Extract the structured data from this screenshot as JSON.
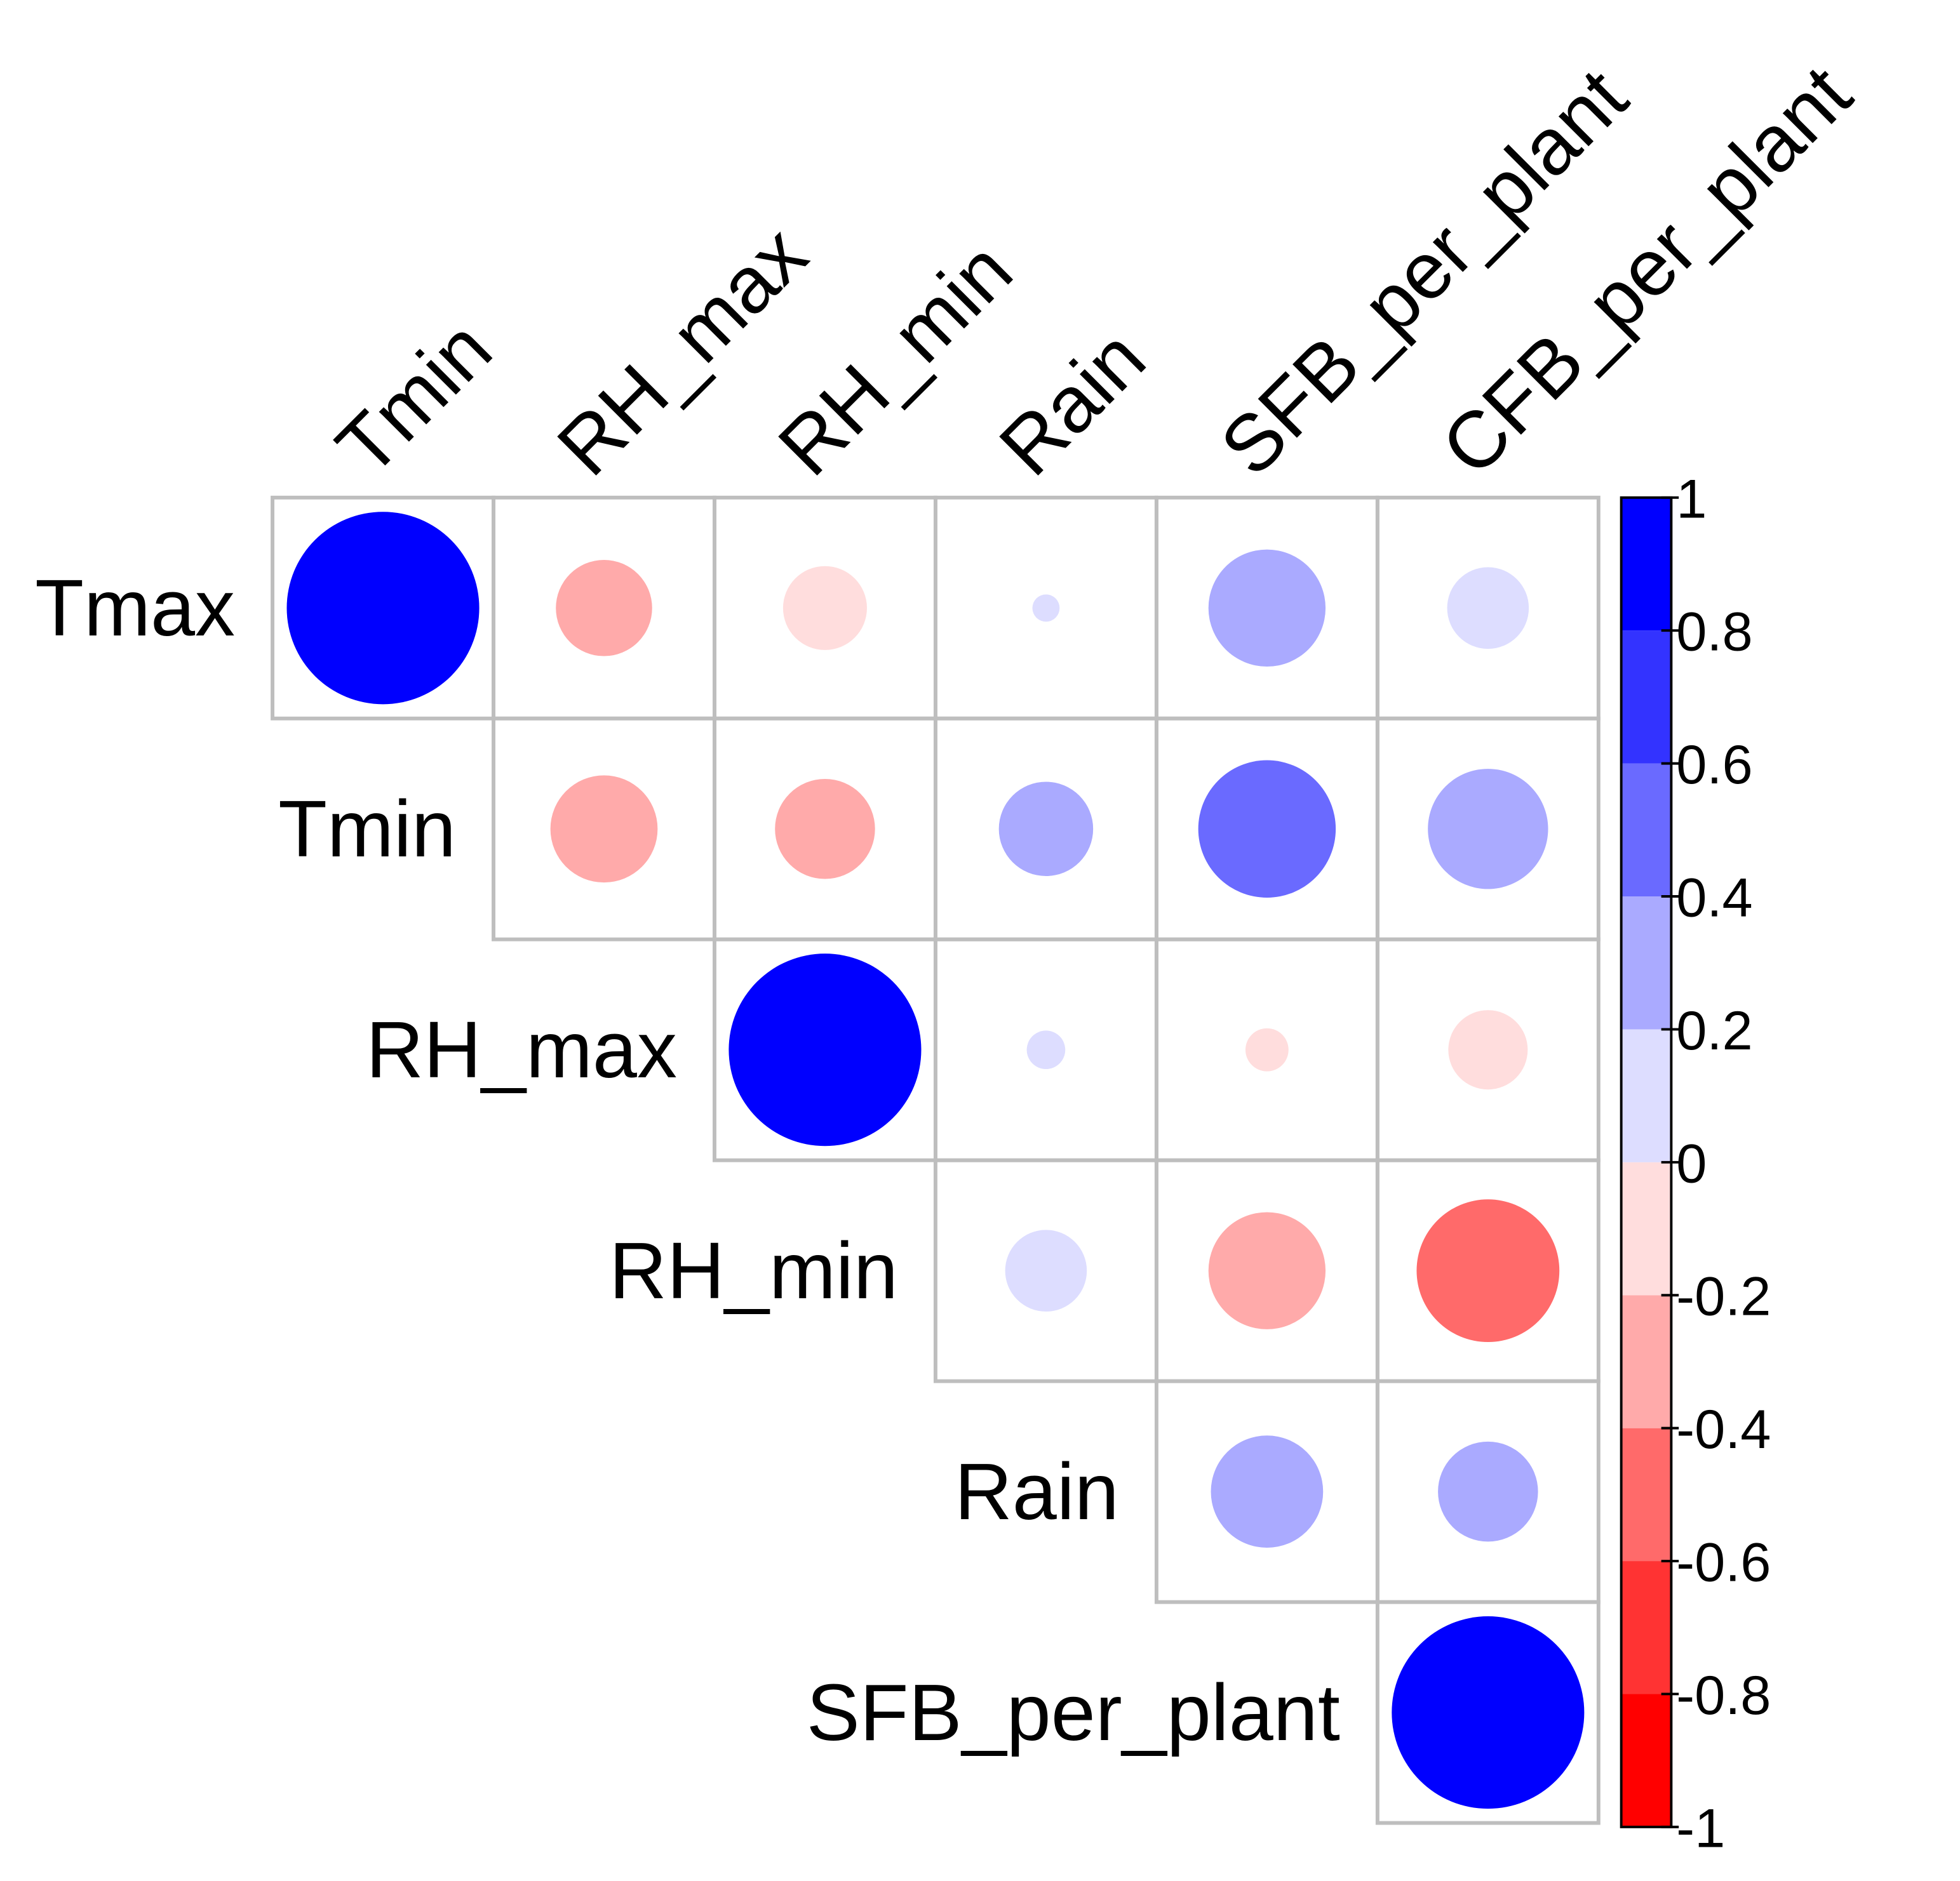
{
  "chart_data": {
    "type": "corrplot",
    "rows": [
      "Tmax",
      "Tmin",
      "RH_max",
      "RH_min",
      "Rain",
      "SFB_per_plant"
    ],
    "columns": [
      "Tmin",
      "RH_max",
      "RH_min",
      "Rain",
      "SFB_per_plant",
      "CFB_per_plant"
    ],
    "values": [
      [
        1,
        -0.25,
        -0.19,
        0.02,
        0.37,
        0.18
      ],
      [
        null,
        -0.31,
        -0.27,
        0.24,
        0.51,
        0.39
      ],
      [
        null,
        null,
        1,
        0.04,
        -0.05,
        -0.17
      ],
      [
        null,
        null,
        null,
        0.18,
        -0.37,
        -0.55
      ],
      [
        null,
        null,
        null,
        null,
        0.34,
        0.27
      ],
      [
        null,
        null,
        null,
        null,
        null,
        1
      ]
    ],
    "colorbar": {
      "ticks": [
        -1,
        -0.8,
        -0.6,
        -0.4,
        -0.2,
        0,
        0.2,
        0.4,
        0.6,
        0.8,
        1
      ],
      "colors": [
        "#FF0000",
        "#FF3333",
        "#FF6A6A",
        "#FFAAAA",
        "#FFDDDD",
        "#DDDDFF",
        "#AAAAFF",
        "#6A6AFF",
        "#3333FF",
        "#0000FF"
      ]
    },
    "grid_color": "#BEBEBE"
  }
}
